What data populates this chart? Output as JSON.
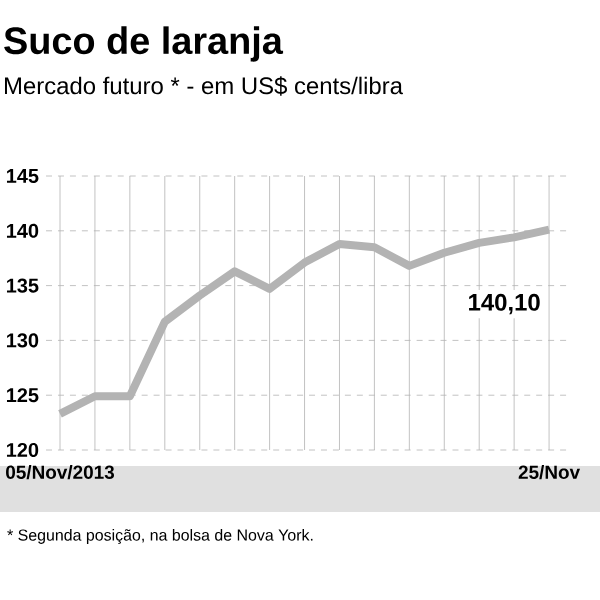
{
  "chart_data": {
    "type": "line",
    "title": "Suco de laranja",
    "subtitle": "Mercado futuro * - em US$ cents/libra",
    "categories": [
      "05/Nov/2013",
      null,
      null,
      null,
      null,
      null,
      null,
      null,
      null,
      null,
      null,
      null,
      null,
      null,
      "25/Nov"
    ],
    "values": [
      123.3,
      124.9,
      124.9,
      131.7,
      134.1,
      136.3,
      134.7,
      137.1,
      138.8,
      138.5,
      136.8,
      138.0,
      138.9,
      139.4,
      140.1
    ],
    "value_labels": [
      null,
      null,
      null,
      null,
      null,
      null,
      null,
      null,
      null,
      null,
      null,
      null,
      null,
      null,
      "140,10"
    ],
    "color": "#b3b3b3",
    "ylim": [
      120,
      145
    ],
    "yticks": [
      120,
      125,
      130,
      135,
      140,
      145
    ],
    "grid": true,
    "marker": "none",
    "line_style": "solid",
    "annotations": [
      "* Segunda posição, na bolsa de Nova York."
    ]
  }
}
